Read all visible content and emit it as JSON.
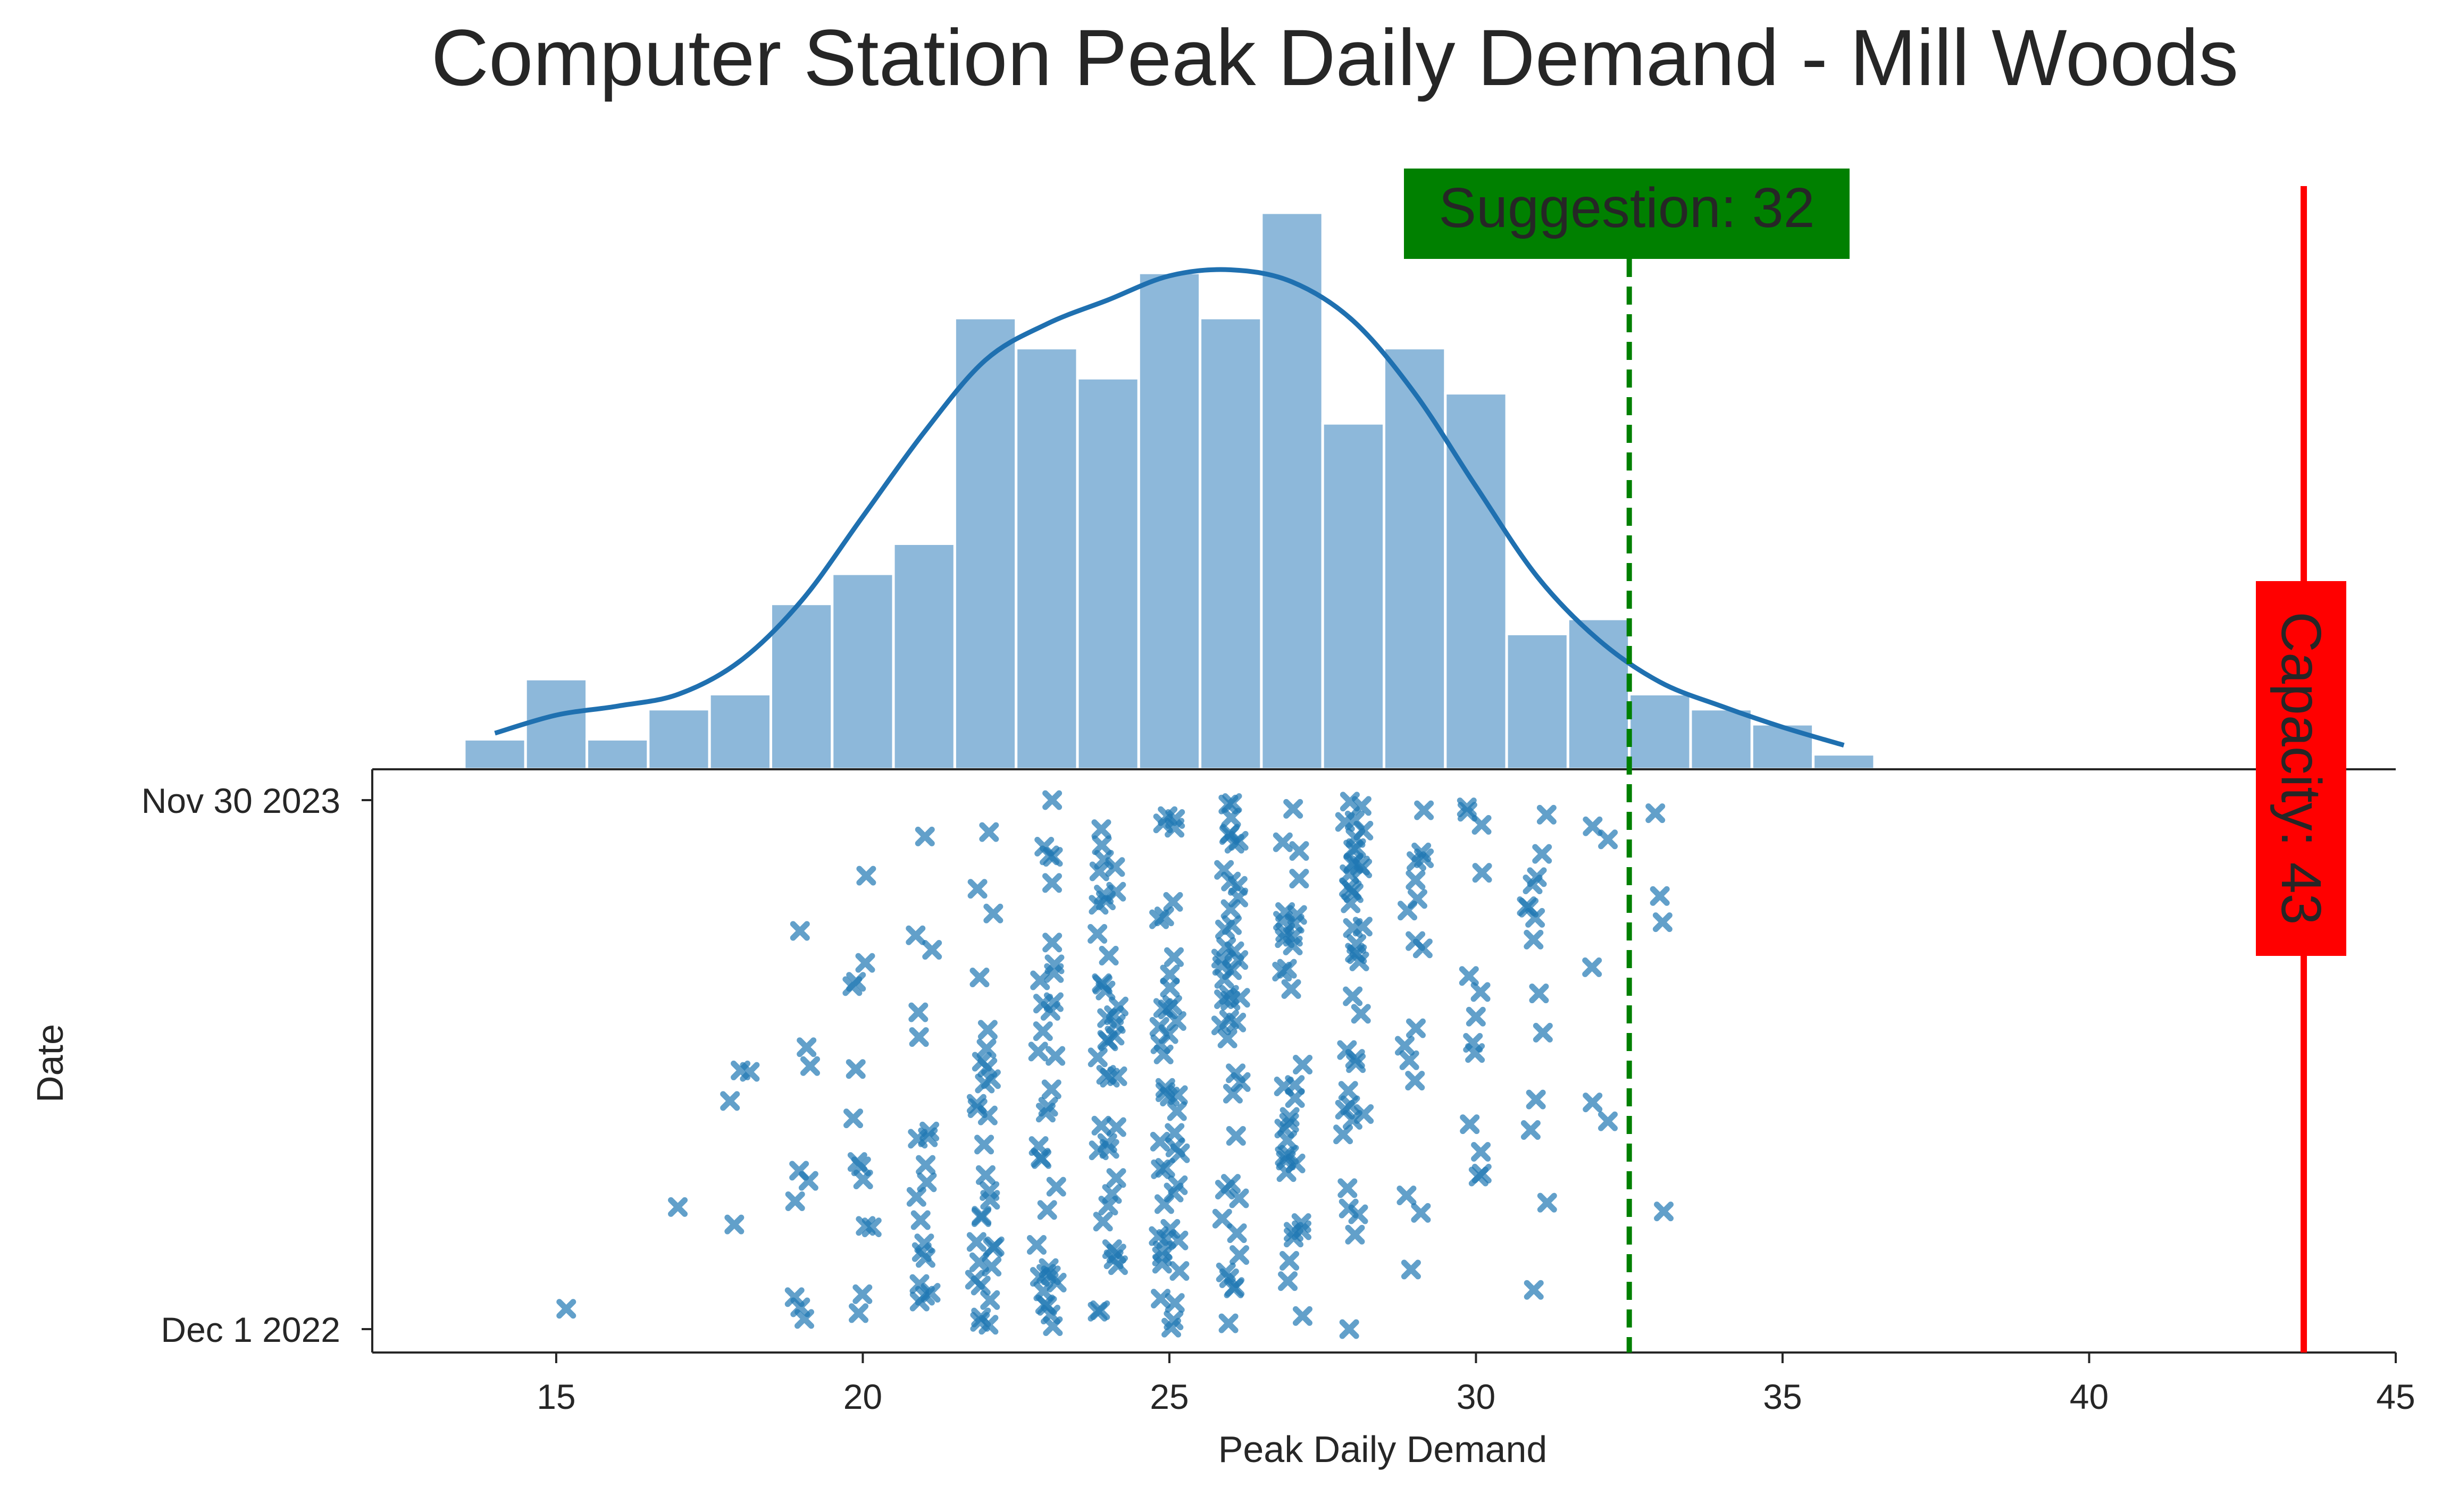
{
  "chart_data": {
    "type": "scatter",
    "title": "Computer Station Peak Daily Demand - Mill Woods",
    "xlabel": "Peak Daily Demand",
    "ylabel": "Date",
    "xlim": [
      12,
      45
    ],
    "x_ticks": [
      15,
      20,
      25,
      30,
      35,
      40,
      45
    ],
    "y_ticks": [
      "Nov 30 2023",
      "Dec 1 2022"
    ],
    "y_range": [
      "2022-12-01",
      "2023-11-30"
    ],
    "grid": false,
    "colors": {
      "scatter": "#1f77b4",
      "histogram": "#8db8da",
      "kde": "#1f70b0",
      "suggestion": "#008000",
      "capacity": "#ff0000"
    },
    "suggestion": {
      "label": "Suggestion: 32",
      "x": 32.5
    },
    "capacity": {
      "label": "Capacity: 43",
      "x": 43.5
    },
    "histogram": {
      "bin_edges": [
        13.5,
        14.5,
        15.5,
        16.5,
        17.5,
        18.5,
        19.5,
        20.5,
        21.5,
        22.5,
        23.5,
        24.5,
        25.5,
        26.5,
        27.5,
        28.5,
        29.5,
        30.5,
        31.5,
        32.5,
        33.5,
        34.5,
        35.5,
        36.5
      ],
      "counts": [
        1,
        3,
        1,
        2,
        2.5,
        5.5,
        6.5,
        7.5,
        15,
        14,
        13,
        16.5,
        15,
        18.5,
        11.5,
        14,
        12.5,
        4.5,
        5,
        2.5,
        2,
        1.5,
        0.5
      ]
    },
    "kde": {
      "x": [
        14,
        15,
        16,
        17,
        18,
        19,
        20,
        21,
        22,
        23,
        24,
        25,
        26,
        27,
        28,
        29,
        30,
        31,
        32,
        33,
        34,
        35,
        36
      ],
      "y": [
        1.2,
        1.8,
        2.1,
        2.5,
        3.6,
        5.6,
        8.4,
        11.2,
        13.6,
        14.8,
        15.6,
        16.4,
        16.6,
        16.2,
        14.9,
        12.5,
        9.4,
        6.4,
        4.3,
        2.9,
        2.1,
        1.4,
        0.8
      ]
    },
    "scatter": {
      "marker": "x",
      "n_points": 365
    }
  }
}
